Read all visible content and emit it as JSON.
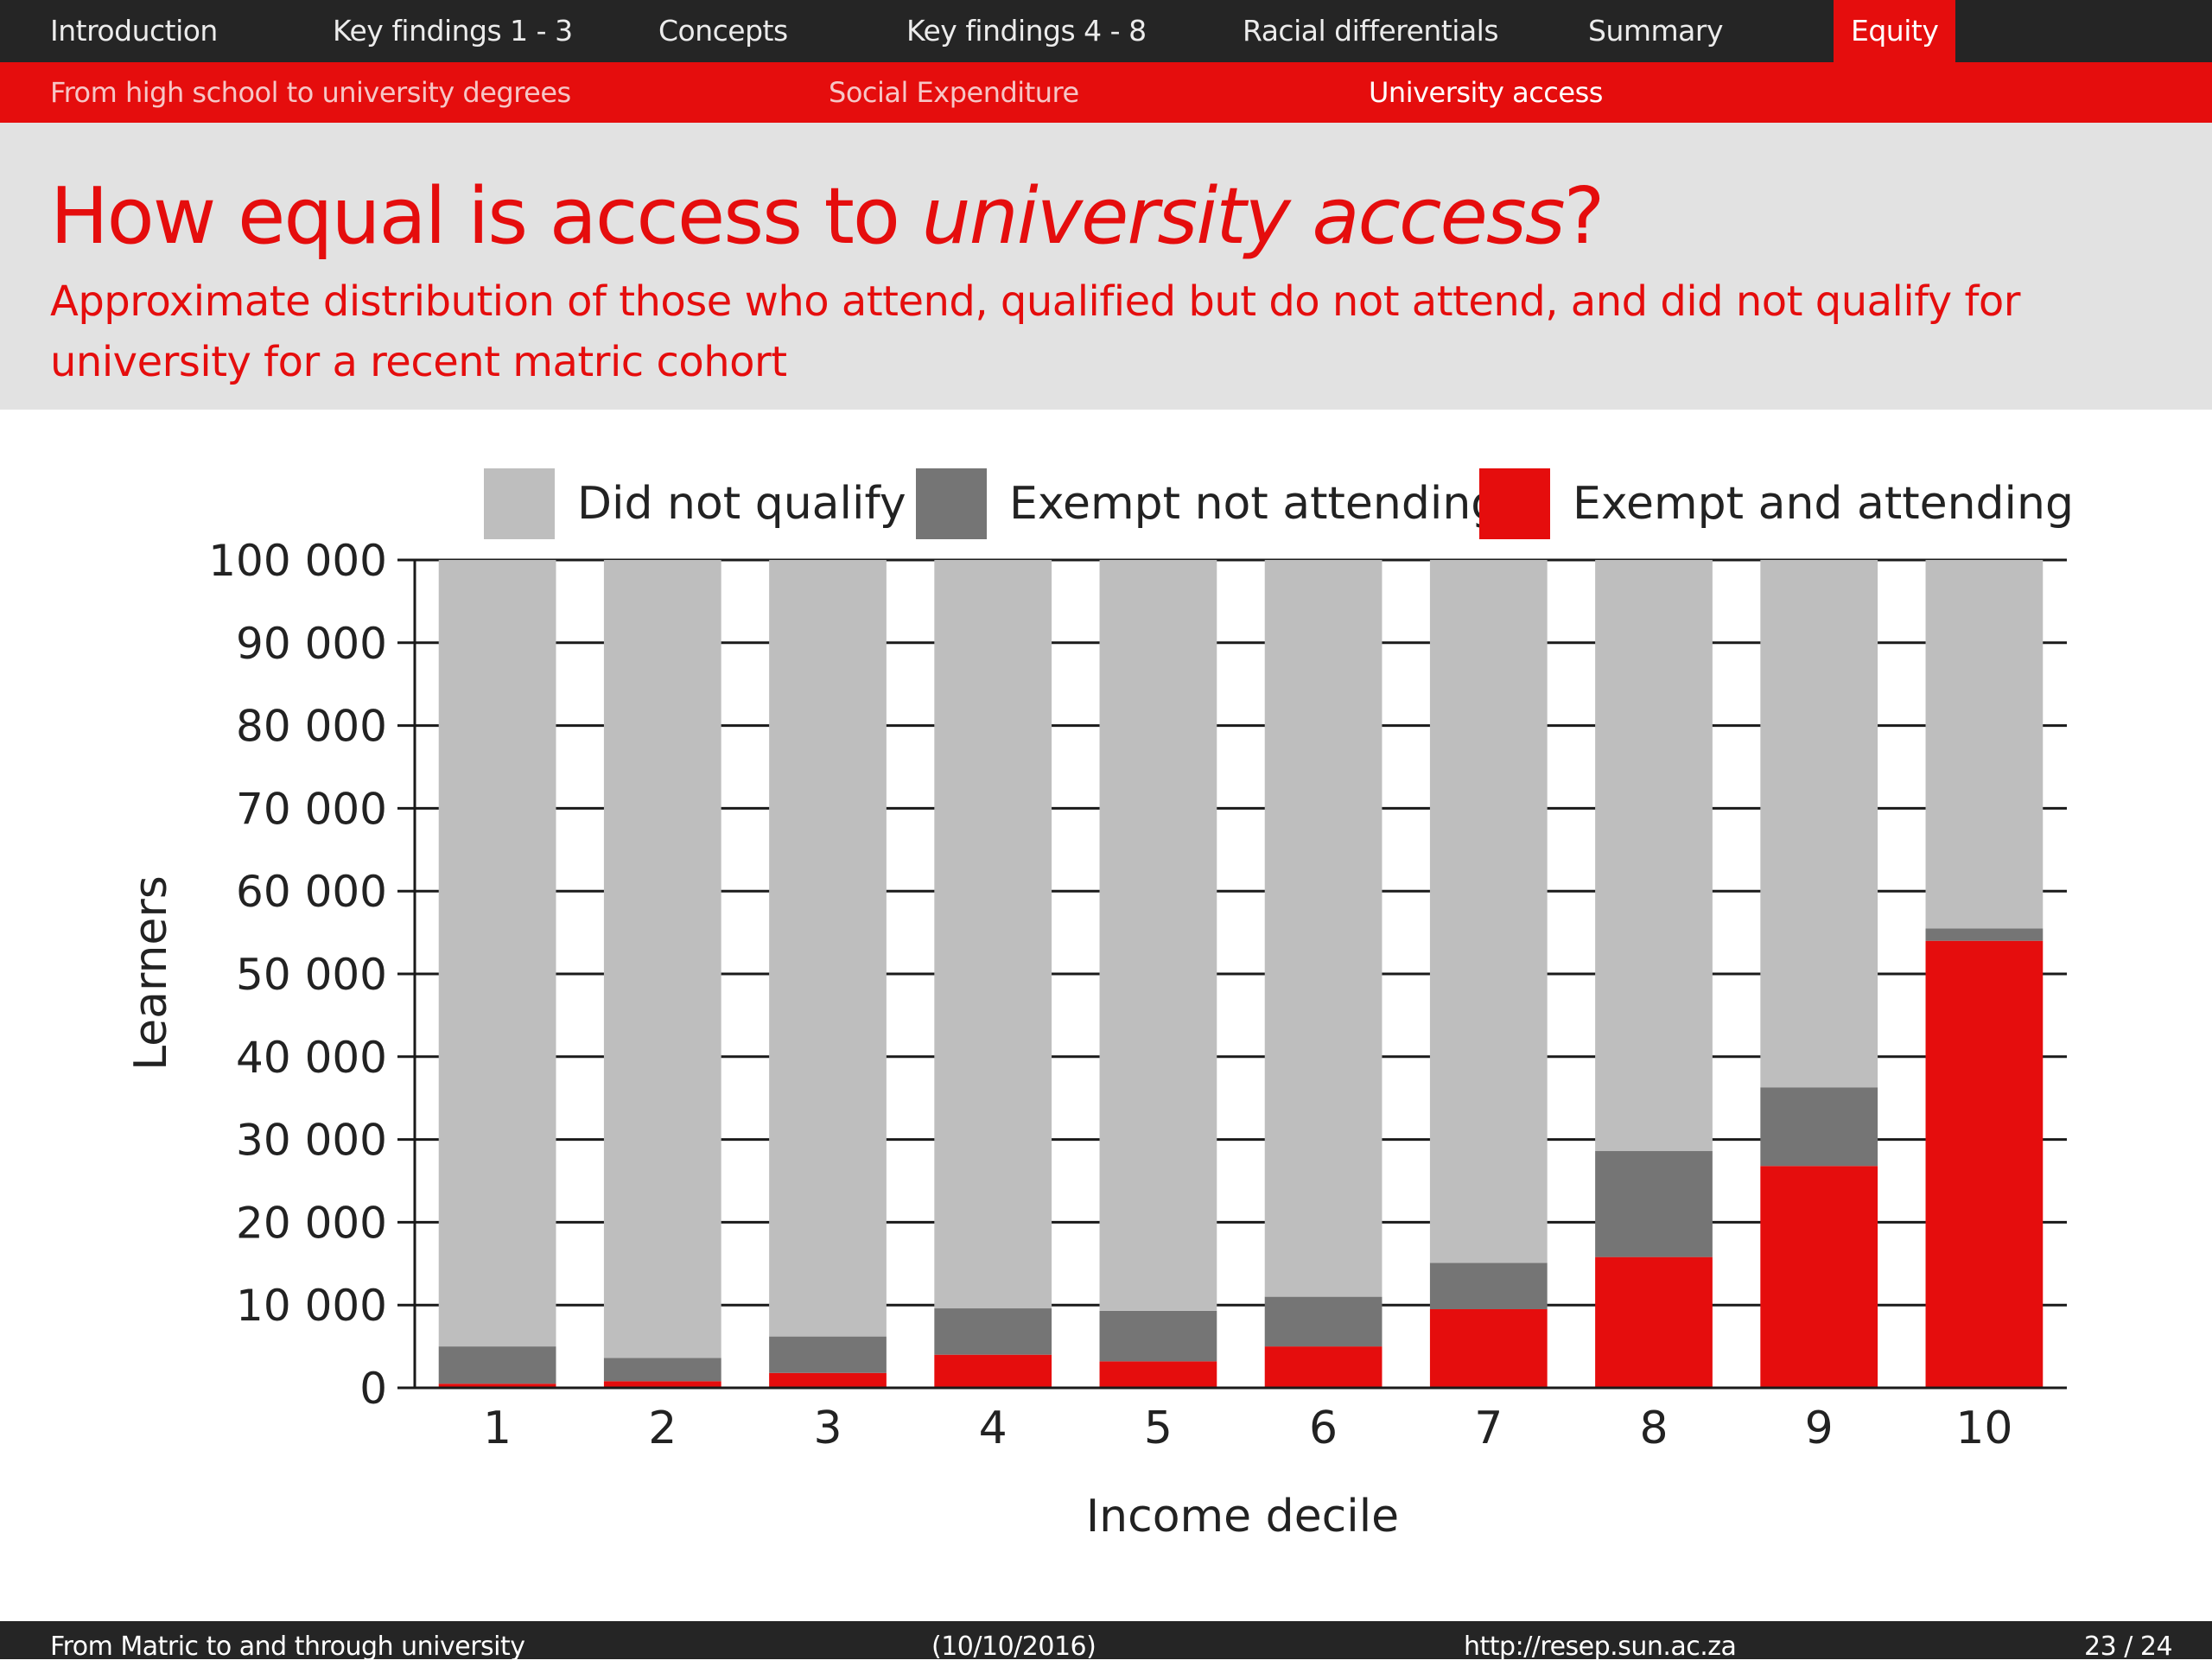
{
  "nav": {
    "tabs": [
      {
        "label": "Introduction"
      },
      {
        "label": "Key findings 1 - 3"
      },
      {
        "label": "Concepts"
      },
      {
        "label": "Key findings 4 - 8"
      },
      {
        "label": "Racial differentials"
      },
      {
        "label": "Summary"
      },
      {
        "label": "Equity",
        "active": true
      }
    ],
    "subtabs": [
      {
        "label": "From high school to university degrees"
      },
      {
        "label": "Social Expenditure"
      },
      {
        "label": "University access",
        "active": true
      }
    ]
  },
  "slide": {
    "title_pre": "How equal is access to ",
    "title_em": "university access",
    "title_post": "?",
    "subtitle": "Approximate distribution of those who attend, qualified but do not attend, and did not qualify for university for a recent matric cohort"
  },
  "chart_data": {
    "type": "bar",
    "stacked": true,
    "categories": [
      "1",
      "2",
      "3",
      "4",
      "5",
      "6",
      "7",
      "8",
      "9",
      "10"
    ],
    "series": [
      {
        "name": "Exempt and attending",
        "color": "#e50d0d",
        "values": [
          500,
          800,
          1800,
          4000,
          3200,
          5000,
          9500,
          15800,
          26800,
          54000
        ]
      },
      {
        "name": "Exempt not attending",
        "color": "#757575",
        "values": [
          4500,
          2800,
          4400,
          5600,
          6100,
          6000,
          5600,
          12800,
          9500,
          1500
        ]
      },
      {
        "name": "Did not qualify",
        "color": "#bebebe",
        "values": [
          95000,
          96400,
          93800,
          90400,
          90700,
          89000,
          84900,
          71400,
          63700,
          44500
        ]
      }
    ],
    "legend_order": [
      "Did not qualify",
      "Exempt not attending",
      "Exempt and attending"
    ],
    "xlabel": "Income decile",
    "ylabel": "Learners",
    "ylim": [
      0,
      100000
    ],
    "yticks": [
      0,
      10000,
      20000,
      30000,
      40000,
      50000,
      60000,
      70000,
      80000,
      90000,
      100000
    ],
    "ytick_labels": [
      "0",
      "10 000",
      "20 000",
      "30 000",
      "40 000",
      "50 000",
      "60 000",
      "70 000",
      "80 000",
      "90 000",
      "100 000"
    ],
    "grid": true,
    "legend_position": "top"
  },
  "footer": {
    "title": "From Matric to and through university",
    "date": "(10/10/2016)",
    "url": "http://resep.sun.ac.za",
    "page": "23 / 24"
  }
}
